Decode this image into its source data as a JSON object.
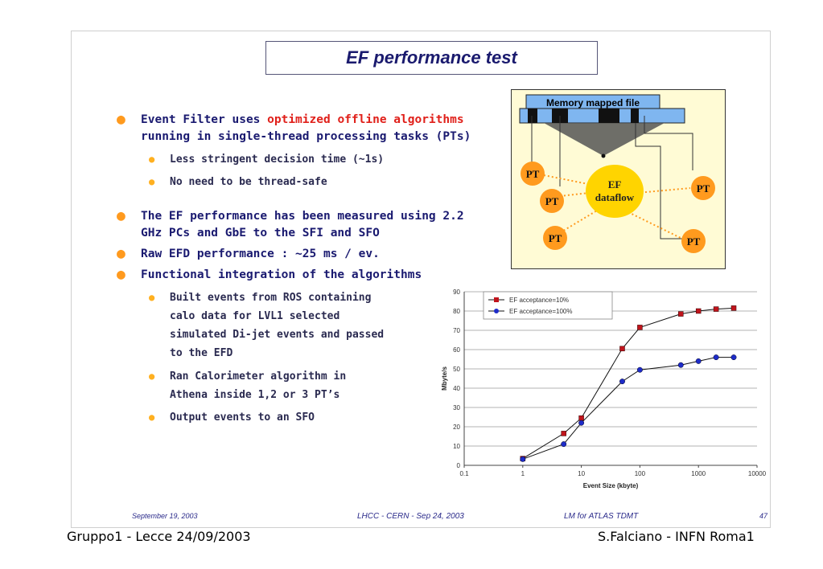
{
  "slide": {
    "title": "EF performance test",
    "bullets": {
      "b1_prefix": "Event Filter uses ",
      "b1_highlight": "optimized offline algorithms",
      "b1_suffix": "running in single-thread processing tasks (PTs)",
      "b1_sub1": "Less stringent decision time (~1s)",
      "b1_sub2": "No need to be thread-safe",
      "b2": "The EF performance has been measured using 2.2 GHz PCs and GbE to the SFI and SFO",
      "b3": "Raw EFD performance : ~25 ms / ev.",
      "b4": "Functional integration of the algorithms",
      "b4_sub1": "Built events from ROS containing calo data for LVL1 selected simulated Di-jet events and passed to the EFD",
      "b4_sub2": "Ran Calorimeter algorithm in Athena inside 1,2 or 3 PT’s",
      "b4_sub3": "Output events to an SFO"
    },
    "diagram": {
      "file_label": "Memory mapped file",
      "center_label_1": "EF",
      "center_label_2": "dataflow",
      "pt_label": "PT"
    },
    "footer": {
      "date": "September 19, 2003",
      "event": "LHCC - CERN - Sep 24, 2003",
      "author": "LM for ATLAS TDMT",
      "page": "47"
    }
  },
  "outer_footer": {
    "left": "Gruppo1 - Lecce 24/09/2003",
    "right": "S.Falciano - INFN Roma1"
  },
  "colors": {
    "title": "#1a1a6e",
    "highlight": "#e0201a",
    "bullet": "#ff9a1e",
    "pt_node": "#ff9a1e",
    "ef_node": "#ffd400",
    "series_red": "#c0141c",
    "series_blue": "#1e2cc8"
  },
  "chart_data": {
    "type": "line",
    "xlabel": "Event Size (kbyte)",
    "ylabel": "Mbyte/s",
    "xscale": "log",
    "xlim": [
      0.1,
      10000
    ],
    "ylim": [
      0,
      90
    ],
    "xticks": [
      "0.1",
      "1",
      "10",
      "100",
      "1000",
      "10000"
    ],
    "yticks": [
      "0",
      "10",
      "20",
      "30",
      "40",
      "50",
      "60",
      "70",
      "80",
      "90"
    ],
    "grid": "horizontal",
    "legend_position": "top-left",
    "series": [
      {
        "name": "EF  acceptance=10%",
        "marker": "square",
        "color": "#c0141c",
        "x": [
          1,
          5,
          10,
          50,
          100,
          500,
          1000,
          2000,
          4000
        ],
        "y": [
          3.5,
          16.5,
          24.5,
          60.5,
          71.5,
          78.5,
          80,
          81,
          81.5
        ]
      },
      {
        "name": "EF  acceptance=100%",
        "marker": "circle",
        "color": "#1e2cc8",
        "x": [
          1,
          5,
          10,
          50,
          100,
          500,
          1000,
          2000,
          4000
        ],
        "y": [
          3.2,
          11,
          22,
          43.5,
          49.5,
          52,
          54,
          56,
          56
        ]
      }
    ]
  }
}
